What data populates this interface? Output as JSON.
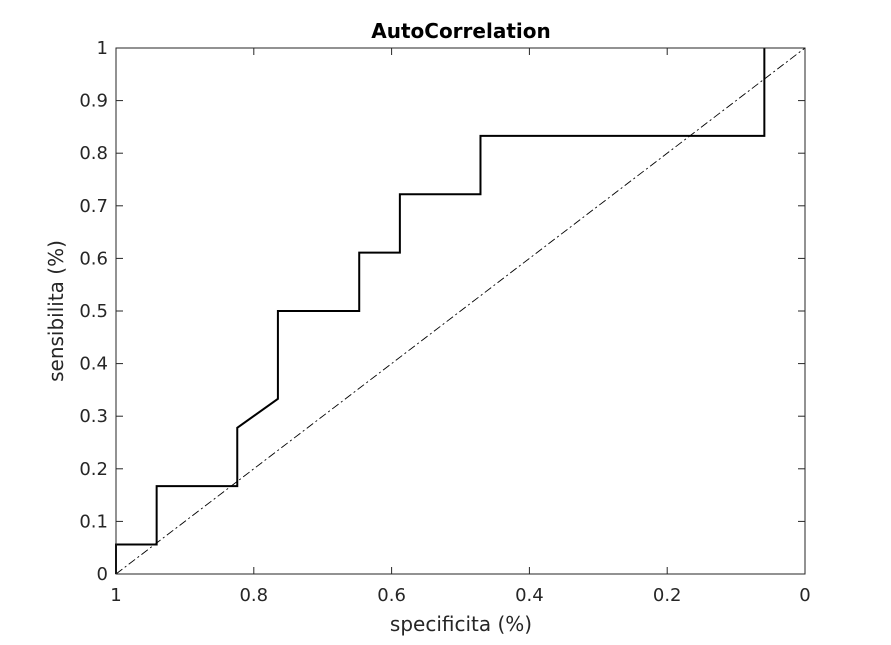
{
  "chart_data": {
    "type": "line",
    "title": "AutoCorrelation",
    "xlabel": "specificita (%)",
    "ylabel": "sensibilita (%)",
    "xlim": [
      0,
      1
    ],
    "ylim": [
      0,
      1
    ],
    "x_reversed": true,
    "grid": false,
    "box": true,
    "x_ticks": [
      "0",
      "0.2",
      "0.4",
      "0.6",
      "0.8",
      "1"
    ],
    "y_ticks": [
      "0",
      "0.1",
      "0.2",
      "0.3",
      "0.4",
      "0.5",
      "0.6",
      "0.7",
      "0.8",
      "0.9",
      "1"
    ],
    "series": [
      {
        "style": "solid",
        "color": "#000000",
        "x": [
          1,
          1,
          0.941,
          0.941,
          0.824,
          0.824,
          0.765,
          0.765,
          0.647,
          0.647,
          0.588,
          0.588,
          0.471,
          0.471,
          0.059,
          0.059
        ],
        "y": [
          0,
          0.056,
          0.056,
          0.167,
          0.167,
          0.278,
          0.333,
          0.5,
          0.5,
          0.611,
          0.611,
          0.722,
          0.722,
          0.833,
          0.833,
          1
        ]
      },
      {
        "style": "dash-dot",
        "color": "#000000",
        "x": [
          1,
          0
        ],
        "y": [
          0,
          1
        ]
      }
    ]
  }
}
